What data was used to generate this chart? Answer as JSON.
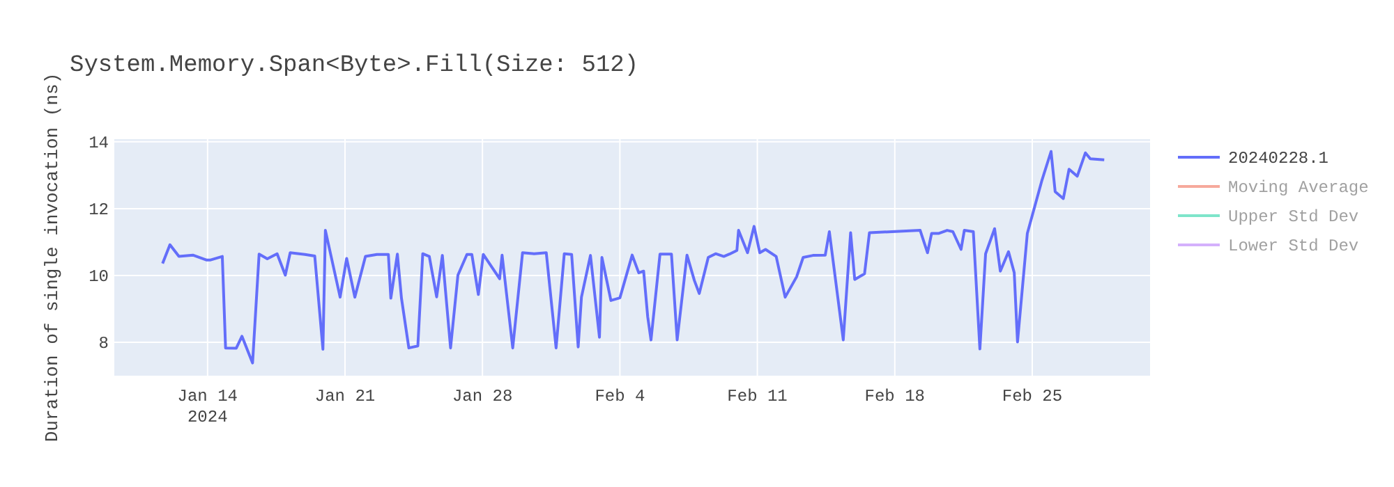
{
  "chart_data": {
    "type": "line",
    "title": "System.Memory.Span<Byte>.Fill(Size: 512)",
    "ylabel": "Duration of single invocation (ns)",
    "xlim": [
      "2024-01-09T06:00",
      "2024-03-02T00:00"
    ],
    "xticks": [
      {
        "value": "2024-01-14",
        "label": "Jan 14\n2024"
      },
      {
        "value": "2024-01-21",
        "label": "Jan 21"
      },
      {
        "value": "2024-01-28",
        "label": "Jan 28"
      },
      {
        "value": "2024-02-04",
        "label": "Feb 4"
      },
      {
        "value": "2024-02-11",
        "label": "Feb 11"
      },
      {
        "value": "2024-02-18",
        "label": "Feb 18"
      },
      {
        "value": "2024-02-25",
        "label": "Feb 25"
      }
    ],
    "ylim": [
      7,
      14.08
    ],
    "yticks": [
      8,
      10,
      12,
      14
    ],
    "grid": true,
    "legend": "top right",
    "marker": "none",
    "line_style": "solid",
    "series": [
      {
        "name": "20240228.1",
        "color": "#636efa",
        "x": [
          "2024-01-11T17:00",
          "2024-01-12T02:00",
          "2024-01-12T13:00",
          "2024-01-13T06:00",
          "2024-01-13T23:00",
          "2024-01-14T03:00",
          "2024-01-14T18:00",
          "2024-01-14T22:00",
          "2024-01-15T11:00",
          "2024-01-15T18:00",
          "2024-01-16T07:00",
          "2024-01-16T15:00",
          "2024-01-17T01:00",
          "2024-01-17T13:00",
          "2024-01-17T23:00",
          "2024-01-18T05:00",
          "2024-01-18T23:00",
          "2024-01-19T11:00",
          "2024-01-19T21:00",
          "2024-01-20T00:00",
          "2024-01-20T18:00",
          "2024-01-21T02:00",
          "2024-01-21T12:00",
          "2024-01-22T01:00",
          "2024-01-22T15:00",
          "2024-01-23T05:00",
          "2024-01-23T08:00",
          "2024-01-23T16:00",
          "2024-01-23T21:00",
          "2024-01-24T06:00",
          "2024-01-24T17:00",
          "2024-01-24T23:00",
          "2024-01-25T07:00",
          "2024-01-25T16:00",
          "2024-01-25T23:00",
          "2024-01-26T09:00",
          "2024-01-26T18:00",
          "2024-01-27T05:00",
          "2024-01-27T11:00",
          "2024-01-27T19:00",
          "2024-01-28T01:00",
          "2024-01-28T21:00",
          "2024-01-29T00:00",
          "2024-01-29T13:00",
          "2024-01-30T01:00",
          "2024-01-30T15:00",
          "2024-01-31T06:00",
          "2024-01-31T18:00",
          "2024-02-01T04:00",
          "2024-02-01T13:00",
          "2024-02-01T21:00",
          "2024-02-02T01:00",
          "2024-02-02T12:00",
          "2024-02-02T23:00",
          "2024-02-03T02:00",
          "2024-02-03T13:00",
          "2024-02-04T00:00",
          "2024-02-04T15:00",
          "2024-02-04T23:00",
          "2024-02-05T05:00",
          "2024-02-05T10:00",
          "2024-02-05T14:00",
          "2024-02-06T01:00",
          "2024-02-06T15:00",
          "2024-02-06T22:00",
          "2024-02-07T10:00",
          "2024-02-07T19:00",
          "2024-02-08T01:00",
          "2024-02-08T12:00",
          "2024-02-08T21:00",
          "2024-02-09T07:00",
          "2024-02-09T14:00",
          "2024-02-09T23:00",
          "2024-02-10T01:00",
          "2024-02-10T12:00",
          "2024-02-10T20:00",
          "2024-02-11T03:00",
          "2024-02-11T10:00",
          "2024-02-11T23:00",
          "2024-02-12T10:00",
          "2024-02-13T00:00",
          "2024-02-13T08:00",
          "2024-02-13T20:00",
          "2024-02-14T11:00",
          "2024-02-14T16:00",
          "2024-02-15T09:00",
          "2024-02-15T18:00",
          "2024-02-15T23:00",
          "2024-02-16T11:00",
          "2024-02-16T17:00",
          "2024-02-19T07:00",
          "2024-02-19T16:00",
          "2024-02-19T21:00",
          "2024-02-20T06:00",
          "2024-02-20T16:00",
          "2024-02-20T23:00",
          "2024-02-21T09:00",
          "2024-02-21T13:00",
          "2024-02-22T00:00",
          "2024-02-22T08:00",
          "2024-02-22T15:00",
          "2024-02-23T02:00",
          "2024-02-23T09:00",
          "2024-02-23T19:00",
          "2024-02-24T02:00",
          "2024-02-24T06:00",
          "2024-02-24T18:00",
          "2024-02-25T12:00",
          "2024-02-25T23:00",
          "2024-02-26T04:00",
          "2024-02-26T14:00",
          "2024-02-26T21:00",
          "2024-02-27T07:00",
          "2024-02-27T17:00",
          "2024-02-27T23:00",
          "2024-02-28T16:00"
        ],
        "values": [
          10.36,
          10.92,
          10.57,
          10.61,
          10.46,
          10.46,
          10.57,
          7.83,
          7.82,
          8.18,
          7.38,
          10.64,
          10.5,
          10.65,
          10.01,
          10.68,
          10.63,
          10.58,
          7.79,
          11.35,
          9.35,
          10.51,
          9.35,
          10.57,
          10.63,
          10.63,
          9.32,
          10.64,
          9.32,
          7.83,
          7.89,
          10.65,
          10.57,
          9.36,
          10.6,
          7.83,
          10.01,
          10.63,
          10.63,
          9.43,
          10.63,
          9.9,
          10.61,
          7.83,
          10.68,
          10.65,
          10.68,
          7.83,
          10.65,
          10.63,
          7.86,
          9.35,
          10.6,
          8.15,
          10.54,
          9.25,
          9.33,
          10.61,
          10.08,
          10.13,
          8.76,
          8.07,
          10.64,
          10.64,
          8.07,
          10.61,
          9.85,
          9.46,
          10.54,
          10.65,
          10.57,
          10.64,
          10.75,
          11.35,
          10.68,
          11.47,
          10.68,
          10.78,
          10.57,
          9.35,
          9.96,
          10.54,
          10.6,
          10.61,
          11.31,
          8.07,
          11.28,
          9.88,
          10.05,
          11.28,
          11.35,
          10.68,
          11.26,
          11.26,
          11.35,
          11.31,
          10.78,
          11.35,
          11.31,
          7.8,
          10.65,
          11.4,
          10.13,
          10.71,
          10.08,
          8.01,
          11.26,
          12.86,
          13.71,
          12.51,
          12.3,
          13.18,
          12.97,
          13.67,
          13.49,
          13.46
        ]
      },
      {
        "name": "Moving Average",
        "color": "#ef553b"
      },
      {
        "name": "Upper Std Dev",
        "color": "#00cc96"
      },
      {
        "name": "Lower Std Dev",
        "color": "#ab63fa"
      }
    ]
  }
}
